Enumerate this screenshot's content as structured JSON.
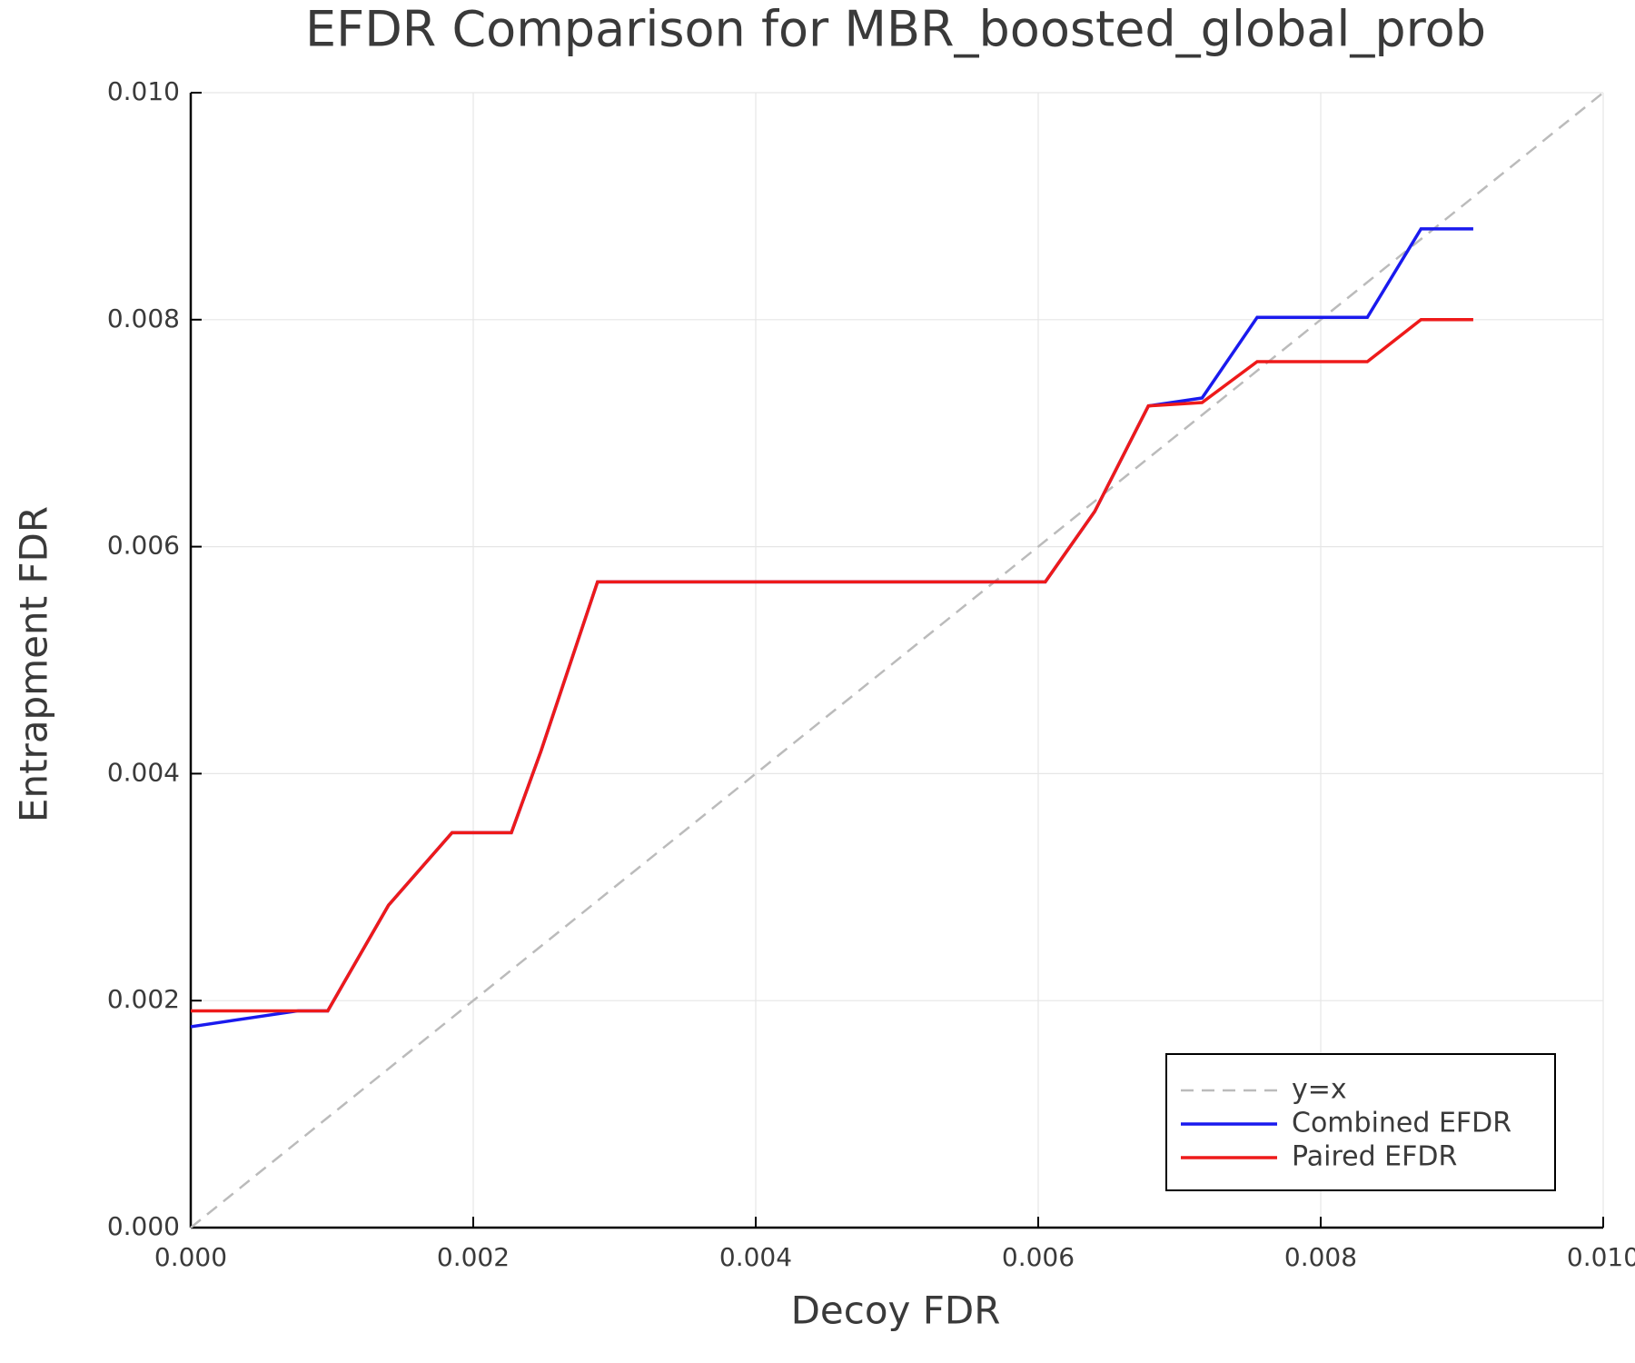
{
  "chart_data": {
    "type": "line",
    "title": "EFDR Comparison for MBR_boosted_global_prob",
    "x_label": "Decoy FDR",
    "y_label": "Entrapment FDR",
    "xlim": [
      0,
      0.01
    ],
    "ylim": [
      0,
      0.01
    ],
    "xticks": [
      {
        "value": 0,
        "label": "0.000"
      },
      {
        "value": 0.002,
        "label": "0.002"
      },
      {
        "value": 0.004,
        "label": "0.004"
      },
      {
        "value": 0.006,
        "label": "0.006"
      },
      {
        "value": 0.008,
        "label": "0.008"
      },
      {
        "value": 0.01,
        "label": "0.010"
      }
    ],
    "yticks": [
      {
        "value": 0,
        "label": "0.000"
      },
      {
        "value": 0.002,
        "label": "0.002"
      },
      {
        "value": 0.004,
        "label": "0.004"
      },
      {
        "value": 0.006,
        "label": "0.006"
      },
      {
        "value": 0.008,
        "label": "0.008"
      },
      {
        "value": 0.01,
        "label": "0.010"
      }
    ],
    "grid": true,
    "legend": "lower right",
    "series": [
      {
        "name": "y=x",
        "color": "#bbbbbb",
        "dashed": true,
        "x": [
          0,
          0.01
        ],
        "values": [
          0,
          0.01
        ]
      },
      {
        "name": "Combined EFDR",
        "color": "#1a1aee",
        "x": [
          0,
          0.00076,
          0.00097,
          0.0014,
          0.00185,
          0.00227,
          0.00248,
          0.00288,
          0.00605,
          0.0064,
          0.00678,
          0.00716,
          0.00755,
          0.00833,
          0.00871,
          0.00908
        ],
        "values": [
          0.00177,
          0.00191,
          0.00191,
          0.00284,
          0.00348,
          0.00348,
          0.0042,
          0.00569,
          0.00569,
          0.00631,
          0.00724,
          0.00731,
          0.00802,
          0.00802,
          0.0088,
          0.0088
        ]
      },
      {
        "name": "Paired EFDR",
        "color": "#ee1a1a",
        "x": [
          0,
          0.00076,
          0.00097,
          0.0014,
          0.00185,
          0.00227,
          0.00248,
          0.00288,
          0.00605,
          0.0064,
          0.00678,
          0.00716,
          0.00755,
          0.00833,
          0.00871,
          0.00908
        ],
        "values": [
          0.00191,
          0.00191,
          0.00191,
          0.00284,
          0.00348,
          0.00348,
          0.0042,
          0.00569,
          0.00569,
          0.00631,
          0.00724,
          0.00727,
          0.00763,
          0.00763,
          0.008,
          0.008
        ]
      }
    ]
  }
}
